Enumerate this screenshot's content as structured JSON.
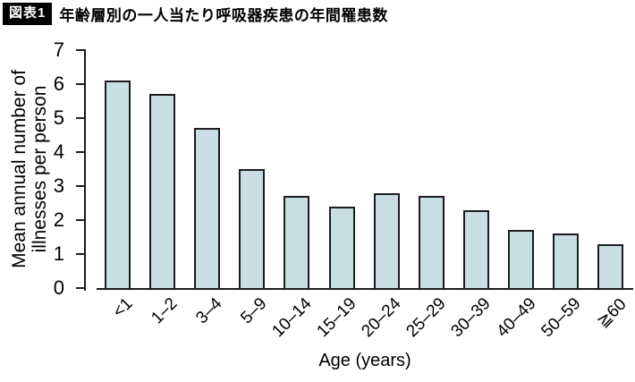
{
  "title": {
    "badge": "図表1",
    "text": "年齢層別の一人当たり呼吸器疾患の年間罹患数"
  },
  "chart_data": {
    "type": "bar",
    "title": "年齢層別の一人当たり呼吸器疾患の年間罹患数",
    "categories": [
      "<1",
      "1–2",
      "3–4",
      "5–9",
      "10–14",
      "15–19",
      "20–24",
      "25–29",
      "30–39",
      "40–49",
      "50–59",
      "≧60"
    ],
    "values": [
      6.1,
      5.7,
      4.7,
      3.5,
      2.7,
      2.4,
      2.8,
      2.7,
      2.3,
      1.7,
      1.6,
      1.3
    ],
    "xlabel": "Age (years)",
    "ylabel": "Mean annual number of illnesses per person",
    "ylabel_lines": [
      "Mean annual number of",
      "illnesses per person"
    ],
    "ylim": [
      0,
      7
    ],
    "yticks": [
      0,
      1,
      2,
      3,
      4,
      5,
      6,
      7
    ],
    "grid": false,
    "legend_position": "none",
    "bar_color": "#c9dee2",
    "bar_border_color": "#1c1c1c",
    "axis_color": "#1c1c1c"
  }
}
